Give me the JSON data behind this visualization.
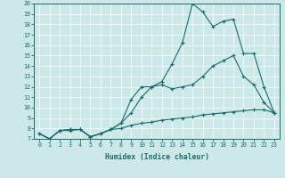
{
  "xlabel": "Humidex (Indice chaleur)",
  "bg_color": "#cce8e8",
  "grid_color": "#ffffff",
  "line_color": "#1a6b6b",
  "xlim_min": -0.5,
  "xlim_max": 23.5,
  "ylim_min": 7,
  "ylim_max": 20,
  "xticks": [
    0,
    1,
    2,
    3,
    4,
    5,
    6,
    7,
    8,
    9,
    10,
    11,
    12,
    13,
    14,
    15,
    16,
    17,
    18,
    19,
    20,
    21,
    22,
    23
  ],
  "yticks": [
    7,
    8,
    9,
    10,
    11,
    12,
    13,
    14,
    15,
    16,
    17,
    18,
    19,
    20
  ],
  "series": [
    {
      "x": [
        0,
        1,
        2,
        3,
        4,
        5,
        6,
        7,
        8,
        9,
        10,
        11,
        12,
        13,
        14,
        15,
        16,
        17,
        18,
        19,
        20,
        21,
        22,
        23
      ],
      "y": [
        7.5,
        7.0,
        7.8,
        7.8,
        7.9,
        7.2,
        7.5,
        7.9,
        8.0,
        8.3,
        8.5,
        8.6,
        8.8,
        8.9,
        9.0,
        9.1,
        9.3,
        9.4,
        9.5,
        9.6,
        9.7,
        9.8,
        9.8,
        9.5
      ]
    },
    {
      "x": [
        0,
        1,
        2,
        3,
        4,
        5,
        6,
        7,
        8,
        9,
        10,
        11,
        12,
        13,
        14,
        15,
        16,
        17,
        18,
        19,
        20,
        21,
        22,
        23
      ],
      "y": [
        7.5,
        7.0,
        7.8,
        7.9,
        7.9,
        7.2,
        7.5,
        7.9,
        8.5,
        9.5,
        11.0,
        12.0,
        12.2,
        11.8,
        12.0,
        12.2,
        13.0,
        14.0,
        14.5,
        15.0,
        13.0,
        12.2,
        10.5,
        9.5
      ]
    },
    {
      "x": [
        0,
        1,
        2,
        3,
        4,
        5,
        6,
        7,
        8,
        9,
        10,
        11,
        12,
        13,
        14,
        15,
        16,
        17,
        18,
        19,
        20,
        21,
        22,
        23
      ],
      "y": [
        7.5,
        7.0,
        7.8,
        7.9,
        7.9,
        7.2,
        7.5,
        7.9,
        8.5,
        10.8,
        12.0,
        12.0,
        12.5,
        14.2,
        16.2,
        20.0,
        19.2,
        17.8,
        18.3,
        18.5,
        15.2,
        15.2,
        12.0,
        9.5
      ]
    }
  ]
}
